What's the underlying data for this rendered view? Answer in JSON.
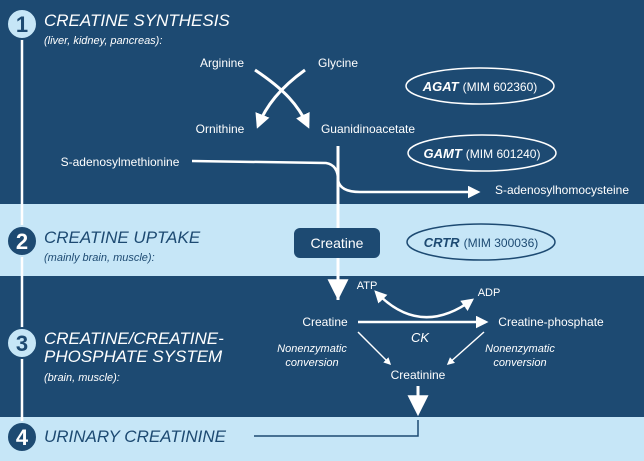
{
  "colors": {
    "dark_band": "#1d4a72",
    "light_band": "#c6e6f7",
    "white": "#ffffff",
    "navy_text": "#1d4a72"
  },
  "steps": [
    {
      "number": "1",
      "title": "CREATINE SYNTHESIS",
      "subtitle": "(liver, kidney, pancreas):"
    },
    {
      "number": "2",
      "title": "CREATINE UPTAKE",
      "subtitle": "(mainly brain, muscle):"
    },
    {
      "number": "3",
      "title_line1": "CREATINE/CREATINE-",
      "title_line2": "PHOSPHATE SYSTEM",
      "subtitle": "(brain, muscle):"
    },
    {
      "number": "4",
      "title": "URINARY CREATININE"
    }
  ],
  "molecules": {
    "arginine": "Arginine",
    "glycine": "Glycine",
    "ornithine": "Ornithine",
    "guanidinoacetate": "Guanidinoacetate",
    "sam": "S-adenosylmethionine",
    "sah": "S-adenosylhomocysteine",
    "creatine_box": "Creatine",
    "atp": "ATP",
    "adp": "ADP",
    "creatine": "Creatine",
    "creatine_phosphate": "Creatine-phosphate",
    "creatinine": "Creatinine"
  },
  "enzymes": [
    {
      "name": "AGAT",
      "mim": "(MIM 602360)"
    },
    {
      "name": "GAMT",
      "mim": "(MIM 601240)"
    },
    {
      "name": "CRTR",
      "mim": "(MIM 300036)"
    }
  ],
  "labels": {
    "ck": "CK",
    "nonenzymatic_line1": "Nonenzymatic",
    "nonenzymatic_line2": "conversion"
  }
}
